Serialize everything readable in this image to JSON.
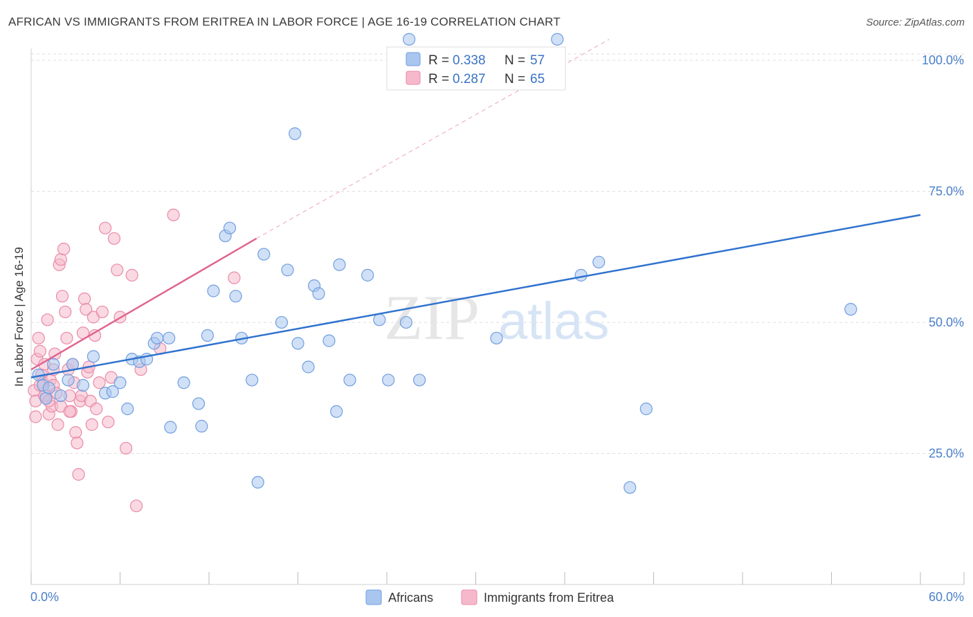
{
  "title": "AFRICAN VS IMMIGRANTS FROM ERITREA IN LABOR FORCE | AGE 16-19 CORRELATION CHART",
  "source": "Source: ZipAtlas.com",
  "watermark": {
    "zip": "ZIP",
    "atlas": "atlas"
  },
  "colors": {
    "blue_fill": "#a9c6ef",
    "blue_stroke": "#6f9ee0",
    "blue_line": "#2f72cf",
    "pink_fill": "#f6b9cb",
    "pink_stroke": "#e98aa8",
    "pink_line": "#e0648f",
    "grid": "#dddddd",
    "axis_text": "#4a7fc9"
  },
  "chart_data": {
    "type": "scatter",
    "title": "AFRICAN VS IMMIGRANTS FROM ERITREA IN LABOR FORCE | AGE 16-19 CORRELATION CHART",
    "xlabel": "",
    "ylabel": "In Labor Force | Age 16-19",
    "xlim": [
      0,
      60
    ],
    "ylim": [
      0,
      102
    ],
    "x_tick_labels": [
      "0.0%",
      "60.0%"
    ],
    "y_ticks": [
      25,
      50,
      75,
      100
    ],
    "y_tick_labels": [
      "25.0%",
      "50.0%",
      "75.0%",
      "100.0%"
    ],
    "legend_top": [
      {
        "r_label": "R = ",
        "r": "0.338",
        "n_label": "N = ",
        "n": "57"
      },
      {
        "r_label": "R = ",
        "r": "0.287",
        "n_label": "N = ",
        "n": "65"
      }
    ],
    "series": [
      {
        "name": "Africans",
        "color": "blue",
        "trend": {
          "x0": 0,
          "y0": 39.5,
          "x1": 60,
          "y1": 70.5,
          "dashed_ext": false
        },
        "points": [
          [
            0.5,
            40
          ],
          [
            0.8,
            38
          ],
          [
            1.0,
            35.5
          ],
          [
            1.2,
            37.5
          ],
          [
            1.5,
            42
          ],
          [
            2.0,
            36
          ],
          [
            2.5,
            39
          ],
          [
            2.8,
            42
          ],
          [
            3.5,
            38
          ],
          [
            4.2,
            43.5
          ],
          [
            5.0,
            36.5
          ],
          [
            5.5,
            36.8
          ],
          [
            6.0,
            38.5
          ],
          [
            6.5,
            33.5
          ],
          [
            6.8,
            43
          ],
          [
            7.3,
            42.5
          ],
          [
            7.8,
            43
          ],
          [
            8.3,
            46
          ],
          [
            8.5,
            47
          ],
          [
            9.3,
            47
          ],
          [
            9.4,
            30
          ],
          [
            10.3,
            38.5
          ],
          [
            11.3,
            34.5
          ],
          [
            11.5,
            30.2
          ],
          [
            11.9,
            47.5
          ],
          [
            12.3,
            56
          ],
          [
            13.1,
            66.5
          ],
          [
            13.4,
            68
          ],
          [
            13.8,
            55
          ],
          [
            14.2,
            47
          ],
          [
            14.9,
            39
          ],
          [
            15.3,
            19.5
          ],
          [
            15.7,
            63
          ],
          [
            16.9,
            50
          ],
          [
            17.3,
            60
          ],
          [
            17.8,
            86
          ],
          [
            18.0,
            46
          ],
          [
            18.7,
            41.5
          ],
          [
            19.1,
            57
          ],
          [
            19.4,
            55.5
          ],
          [
            20.1,
            46.5
          ],
          [
            20.6,
            33
          ],
          [
            20.8,
            61
          ],
          [
            21.5,
            39
          ],
          [
            22.7,
            59
          ],
          [
            23.5,
            50.5
          ],
          [
            24.1,
            39
          ],
          [
            25.3,
            50
          ],
          [
            26.2,
            39
          ],
          [
            31.4,
            47
          ],
          [
            35.5,
            104
          ],
          [
            37.1,
            59
          ],
          [
            38.3,
            61.5
          ],
          [
            40.4,
            18.5
          ],
          [
            41.5,
            33.5
          ],
          [
            55.3,
            52.5
          ],
          [
            25.5,
            104
          ]
        ]
      },
      {
        "name": "Immigrants from Eritrea",
        "color": "pink",
        "trend": {
          "x0": 0,
          "y0": 41,
          "x1": 15.2,
          "y1": 66,
          "dashed_ext": true,
          "dash_x1": 39,
          "dash_y1": 104
        },
        "points": [
          [
            0.2,
            37
          ],
          [
            0.3,
            35
          ],
          [
            0.4,
            43
          ],
          [
            0.5,
            47
          ],
          [
            0.6,
            44.5
          ],
          [
            0.7,
            40
          ],
          [
            0.8,
            38.5
          ],
          [
            0.9,
            42
          ],
          [
            1.0,
            36
          ],
          [
            1.1,
            50.5
          ],
          [
            1.2,
            32.5
          ],
          [
            1.3,
            39
          ],
          [
            1.4,
            34
          ],
          [
            1.5,
            38
          ],
          [
            1.6,
            44
          ],
          [
            1.7,
            36.5
          ],
          [
            1.8,
            30.5
          ],
          [
            1.9,
            61
          ],
          [
            2.0,
            62
          ],
          [
            2.1,
            55
          ],
          [
            2.2,
            64
          ],
          [
            2.3,
            52
          ],
          [
            2.4,
            47
          ],
          [
            2.5,
            41
          ],
          [
            2.6,
            36
          ],
          [
            2.7,
            33
          ],
          [
            2.8,
            42
          ],
          [
            2.9,
            38.5
          ],
          [
            3.0,
            29
          ],
          [
            3.1,
            27
          ],
          [
            3.2,
            21
          ],
          [
            3.3,
            35
          ],
          [
            3.4,
            36
          ],
          [
            3.5,
            48
          ],
          [
            3.6,
            54.5
          ],
          [
            3.7,
            52.5
          ],
          [
            3.8,
            40.5
          ],
          [
            3.9,
            41.5
          ],
          [
            4.0,
            35
          ],
          [
            4.1,
            30.5
          ],
          [
            4.2,
            51
          ],
          [
            4.3,
            47.5
          ],
          [
            4.4,
            33.5
          ],
          [
            4.6,
            38.5
          ],
          [
            4.8,
            52
          ],
          [
            5.0,
            68
          ],
          [
            5.2,
            31
          ],
          [
            5.4,
            39.5
          ],
          [
            5.6,
            66
          ],
          [
            5.8,
            60
          ],
          [
            6.0,
            51
          ],
          [
            6.4,
            26
          ],
          [
            6.8,
            59
          ],
          [
            7.1,
            15
          ],
          [
            7.4,
            41
          ],
          [
            8.7,
            45
          ],
          [
            9.6,
            70.5
          ],
          [
            13.7,
            58.5
          ],
          [
            0.3,
            32
          ],
          [
            0.6,
            38
          ],
          [
            0.9,
            36
          ],
          [
            1.2,
            35
          ],
          [
            1.5,
            41
          ],
          [
            2.0,
            34
          ],
          [
            2.6,
            33
          ]
        ]
      }
    ]
  }
}
